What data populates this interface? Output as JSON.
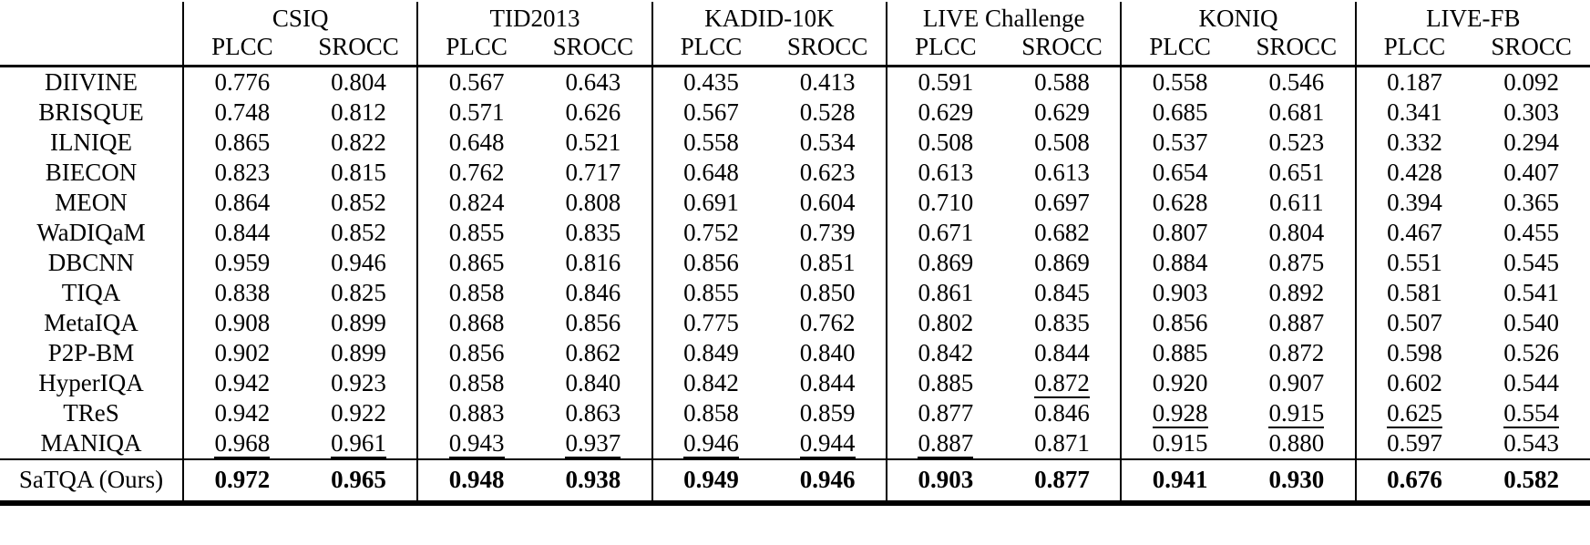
{
  "table": {
    "datasets": [
      "CSIQ",
      "TID2013",
      "KADID-10K",
      "LIVE Challenge",
      "KONIQ",
      "LIVE-FB"
    ],
    "metric_headers": [
      "PLCC",
      "SROCC"
    ],
    "rows": [
      {
        "method": "DIIVINE",
        "values": [
          "0.776",
          "0.804",
          "0.567",
          "0.643",
          "0.435",
          "0.413",
          "0.591",
          "0.588",
          "0.558",
          "0.546",
          "0.187",
          "0.092"
        ],
        "underline": []
      },
      {
        "method": "BRISQUE",
        "values": [
          "0.748",
          "0.812",
          "0.571",
          "0.626",
          "0.567",
          "0.528",
          "0.629",
          "0.629",
          "0.685",
          "0.681",
          "0.341",
          "0.303"
        ],
        "underline": []
      },
      {
        "method": "ILNIQE",
        "values": [
          "0.865",
          "0.822",
          "0.648",
          "0.521",
          "0.558",
          "0.534",
          "0.508",
          "0.508",
          "0.537",
          "0.523",
          "0.332",
          "0.294"
        ],
        "underline": []
      },
      {
        "method": "BIECON",
        "values": [
          "0.823",
          "0.815",
          "0.762",
          "0.717",
          "0.648",
          "0.623",
          "0.613",
          "0.613",
          "0.654",
          "0.651",
          "0.428",
          "0.407"
        ],
        "underline": []
      },
      {
        "method": "MEON",
        "values": [
          "0.864",
          "0.852",
          "0.824",
          "0.808",
          "0.691",
          "0.604",
          "0.710",
          "0.697",
          "0.628",
          "0.611",
          "0.394",
          "0.365"
        ],
        "underline": []
      },
      {
        "method": "WaDIQaM",
        "values": [
          "0.844",
          "0.852",
          "0.855",
          "0.835",
          "0.752",
          "0.739",
          "0.671",
          "0.682",
          "0.807",
          "0.804",
          "0.467",
          "0.455"
        ],
        "underline": []
      },
      {
        "method": "DBCNN",
        "values": [
          "0.959",
          "0.946",
          "0.865",
          "0.816",
          "0.856",
          "0.851",
          "0.869",
          "0.869",
          "0.884",
          "0.875",
          "0.551",
          "0.545"
        ],
        "underline": []
      },
      {
        "method": "TIQA",
        "values": [
          "0.838",
          "0.825",
          "0.858",
          "0.846",
          "0.855",
          "0.850",
          "0.861",
          "0.845",
          "0.903",
          "0.892",
          "0.581",
          "0.541"
        ],
        "underline": []
      },
      {
        "method": "MetaIQA",
        "values": [
          "0.908",
          "0.899",
          "0.868",
          "0.856",
          "0.775",
          "0.762",
          "0.802",
          "0.835",
          "0.856",
          "0.887",
          "0.507",
          "0.540"
        ],
        "underline": []
      },
      {
        "method": "P2P-BM",
        "values": [
          "0.902",
          "0.899",
          "0.856",
          "0.862",
          "0.849",
          "0.840",
          "0.842",
          "0.844",
          "0.885",
          "0.872",
          "0.598",
          "0.526"
        ],
        "underline": []
      },
      {
        "method": "HyperIQA",
        "values": [
          "0.942",
          "0.923",
          "0.858",
          "0.840",
          "0.842",
          "0.844",
          "0.885",
          "0.872",
          "0.920",
          "0.907",
          "0.602",
          "0.544"
        ],
        "underline": [
          7
        ]
      },
      {
        "method": "TReS",
        "values": [
          "0.942",
          "0.922",
          "0.883",
          "0.863",
          "0.858",
          "0.859",
          "0.877",
          "0.846",
          "0.928",
          "0.915",
          "0.625",
          "0.554"
        ],
        "underline": [
          8,
          9,
          10,
          11
        ]
      },
      {
        "method": "MANIQA",
        "values": [
          "0.968",
          "0.961",
          "0.943",
          "0.937",
          "0.946",
          "0.944",
          "0.887",
          "0.871",
          "0.915",
          "0.880",
          "0.597",
          "0.543"
        ],
        "underline": [
          0,
          1,
          2,
          3,
          4,
          5,
          6
        ]
      }
    ],
    "footer": {
      "method": "SaTQA (Ours)",
      "values": [
        "0.972",
        "0.965",
        "0.948",
        "0.938",
        "0.949",
        "0.946",
        "0.903",
        "0.877",
        "0.941",
        "0.930",
        "0.676",
        "0.582"
      ],
      "bold": true
    }
  }
}
